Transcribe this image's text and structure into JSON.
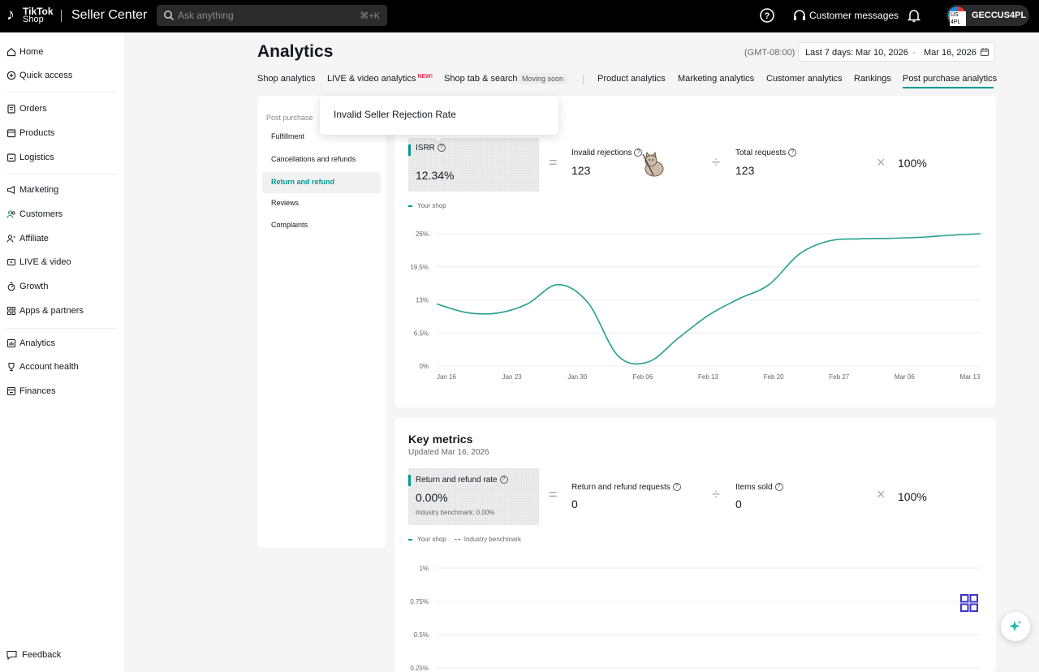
{
  "topbar": {
    "logo_line1": "TikTok",
    "logo_line2": "Shop",
    "app_title": "Seller Center",
    "search_placeholder": "Ask anything",
    "search_shortcut": "⌘+K",
    "customer_messages": "Customer messages",
    "account_name": "GECCUS4PL",
    "avatar_text": "US 4PL",
    "icons": [
      "search-icon",
      "help-icon",
      "headset-icon",
      "bell-icon"
    ]
  },
  "sidebar": {
    "items": [
      {
        "label": "Home",
        "icon": "home-icon"
      },
      {
        "label": "Quick access",
        "icon": "plus-circle-icon"
      },
      {
        "label": "Orders",
        "icon": "clipboard-icon"
      },
      {
        "label": "Products",
        "icon": "box-icon"
      },
      {
        "label": "Logistics",
        "icon": "truck-icon"
      },
      {
        "label": "Marketing",
        "icon": "megaphone-icon"
      },
      {
        "label": "Customers",
        "icon": "customers-icon"
      },
      {
        "label": "Affiliate",
        "icon": "affiliate-icon"
      },
      {
        "label": "LIVE & video",
        "icon": "video-icon"
      },
      {
        "label": "Growth",
        "icon": "growth-icon"
      },
      {
        "label": "Apps & partners",
        "icon": "apps-icon"
      },
      {
        "label": "Analytics",
        "icon": "analytics-icon"
      },
      {
        "label": "Account health",
        "icon": "trophy-icon"
      },
      {
        "label": "Finances",
        "icon": "finance-icon"
      }
    ],
    "feedback": "Feedback"
  },
  "page": {
    "title": "Analytics",
    "timezone": "(GMT-08:00)",
    "date_label": "Last 7 days:",
    "date_start": "Mar 10, 2026",
    "date_sep": "-",
    "date_end": "Mar 16, 2026"
  },
  "tabs": [
    {
      "label": "Shop analytics"
    },
    {
      "label": "LIVE & video analytics",
      "badge": "NEW!"
    },
    {
      "label": "Shop tab & search",
      "badge": "Moving soon"
    },
    {
      "label": "Product analytics"
    },
    {
      "label": "Marketing analytics"
    },
    {
      "label": "Customer analytics"
    },
    {
      "label": "Rankings"
    },
    {
      "label": "Post purchase analytics",
      "active": true
    }
  ],
  "submenu": {
    "heading": "Post purchase",
    "items": [
      "Fulfillment",
      "Cancellations and refunds",
      "Return and refund",
      "Reviews",
      "Complaints"
    ],
    "active": "Return and refund"
  },
  "tooltip": {
    "text": "Invalid Seller Rejection Rate",
    "peek": "e"
  },
  "isrr": {
    "label": "ISRR",
    "value": "12.34%",
    "invalid_label": "Invalid rejections",
    "invalid_value": "123",
    "total_label": "Total requests",
    "total_value": "123",
    "multiplier": "100%",
    "op_eq": "=",
    "op_div": "÷",
    "op_mul": "×",
    "legend": "Your shop"
  },
  "key_metrics": {
    "title": "Key metrics",
    "updated": "Updated Mar 16, 2026",
    "rate_label": "Return and refund rate",
    "rate_value": "0.00%",
    "benchmark": "Industry benchmark: 0.00%",
    "requests_label": "Return and refund requests",
    "requests_value": "0",
    "items_label": "Items sold",
    "items_value": "0",
    "multiplier": "100%",
    "legend_shop": "Your shop",
    "legend_benchmark": "Industry benchmark"
  },
  "chart_data": [
    {
      "type": "line",
      "title": "",
      "series": [
        {
          "name": "Your shop",
          "color": "#26a08c",
          "x": [
            "Jan 16",
            "Jan 20",
            "Jan 24",
            "Jan 27",
            "Jan 30",
            "Feb 02",
            "Feb 05",
            "Feb 08",
            "Feb 11",
            "Feb 15",
            "Feb 19",
            "Feb 22",
            "Feb 26",
            "Feb 28",
            "Mar 03",
            "Mar 06",
            "Mar 09",
            "Mar 13",
            "Mar 16"
          ],
          "values": [
            12.2,
            10.5,
            10.4,
            12.2,
            16.0,
            12.5,
            2.0,
            0.8,
            5.5,
            10.0,
            13.2,
            16.0,
            22.0,
            24.6,
            25.0,
            25.1,
            25.3,
            25.7,
            26.0
          ]
        }
      ],
      "x_ticks": [
        "Jan 16",
        "Jan 23",
        "Jan 30",
        "Feb 06",
        "Feb 13",
        "Feb 20",
        "Feb 27",
        "Mar 06",
        "Mar 13"
      ],
      "y_ticks": [
        "0%",
        "6.5%",
        "13%",
        "19.5%",
        "26%"
      ],
      "ylim": [
        0,
        26
      ],
      "grid": true,
      "legend": "top-left"
    },
    {
      "type": "line",
      "title": "",
      "series": [
        {
          "name": "Your shop",
          "values": []
        },
        {
          "name": "Industry benchmark",
          "values": []
        }
      ],
      "y_ticks": [
        "0.25%",
        "0.5%",
        "0.75%",
        "1%"
      ],
      "grid": true,
      "legend": "top-left"
    }
  ]
}
